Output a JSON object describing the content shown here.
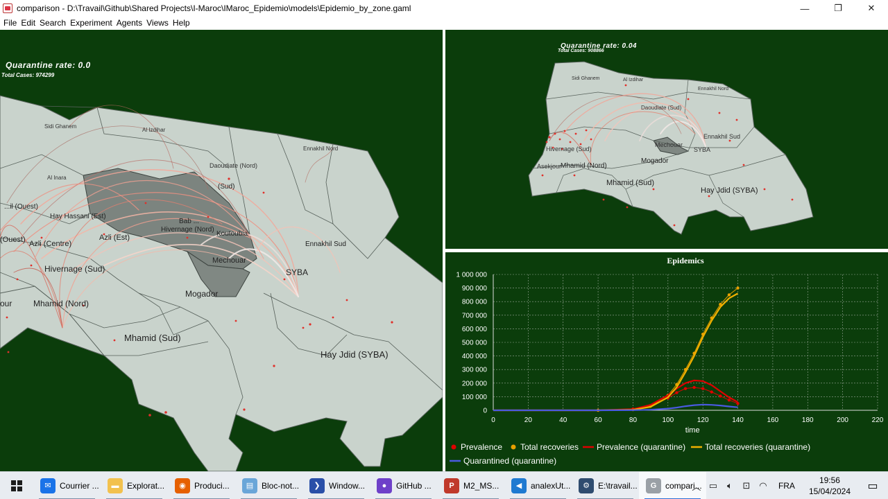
{
  "window": {
    "title": "comparison - D:\\Travail\\Github\\Shared Projects\\I-Maroc\\IMaroc_Epidemio\\models\\Epidemio_by_zone.gaml",
    "controls": {
      "minimize": "—",
      "restore": "❐",
      "close": "✕"
    }
  },
  "menu": [
    "File",
    "Edit",
    "Search",
    "Experiment",
    "Agents",
    "Views",
    "Help"
  ],
  "left_view": {
    "title": "Quarantine rate: 0.0",
    "subtitle": "Total Cases: 974299",
    "zones": {
      "sidi_ghanem": "Sidi Ghanem",
      "al_izdihar": "Al Izdihar",
      "ennakhil_nord": "Ennakhil Nord",
      "daoudiate": "Daoudiate (Nord)",
      "al_inara": "Al Inara",
      "ouest": "...il (Ouest)",
      "hay_hassani": "Hay Hassani (Est)",
      "sud": "(Sud)",
      "bab": "Bab ...",
      "hivernage_nord": "Hivernage (Nord)",
      "koutoubia": "Koutoubia",
      "ouest2": "(Ouest)",
      "azli_centre": "Azli (Centre)",
      "azli_est": "Azli (Est)",
      "ennakhil_sud": "Ennakhil Sud",
      "mechouar": "Mechouar",
      "hivernage_sud": "Hivernage (Sud)",
      "syba": "SYBA",
      "mhamid_nord": "Mhamid (Nord)",
      "mogador": "Mogador",
      "our": "our",
      "mhamid_sud": "Mhamid (Sud)",
      "hay_jdid": "Hay Jdid (SYBA)"
    }
  },
  "right_view": {
    "title": "Quarantine rate: 0.04",
    "subtitle": "Total Cases: 908866",
    "zones": {
      "ghanem": "Sidi Ghanem",
      "al_izdihar": "Al Izdihar",
      "ennakhil_nord": "Ennakhil Nord",
      "daoudiate": "Daoudiate (Sud)",
      "hivernage_sud": "Hivernage (Sud)",
      "mechouar": "Mechouar",
      "ennakhil_sud": "Ennakhil Sud",
      "syba": "SYBA",
      "asekjour": "Asekjour",
      "mhamid_nord": "Mhamid (Nord)",
      "mogador": "Mogador",
      "mhamid_sud": "Mhamid (Sud)",
      "hay_jdid": "Hay Jdid (SYBA)"
    }
  },
  "chart_data": {
    "type": "line",
    "title": "Epidemics",
    "xlabel": "time",
    "ylabel": "",
    "xlim": [
      0,
      220
    ],
    "ylim": [
      0,
      1000000
    ],
    "x_ticks": [
      0,
      20,
      40,
      60,
      80,
      100,
      120,
      140,
      160,
      180,
      200,
      220
    ],
    "y_ticks": [
      0,
      100000,
      200000,
      300000,
      400000,
      500000,
      600000,
      700000,
      800000,
      900000,
      1000000
    ],
    "y_tick_labels": [
      "0",
      "100 000",
      "200 000",
      "300 000",
      "400 000",
      "500 000",
      "600 000",
      "700 000",
      "800 000",
      "900 000",
      "1 000 000"
    ],
    "grid": true,
    "legend_position": "bottom",
    "series": [
      {
        "name": "Prevalence",
        "color": "#e00000",
        "style": "dots",
        "x": [
          0,
          60,
          80,
          90,
          100,
          105,
          110,
          115,
          120,
          125,
          130,
          135,
          140
        ],
        "values": [
          0,
          0,
          10000,
          35000,
          90000,
          130000,
          160000,
          168000,
          160000,
          135000,
          105000,
          75000,
          50000
        ]
      },
      {
        "name": "Total recoveries",
        "color": "#e8a000",
        "style": "dots",
        "x": [
          0,
          60,
          80,
          90,
          100,
          105,
          110,
          115,
          120,
          125,
          130,
          135,
          140
        ],
        "values": [
          0,
          0,
          5000,
          30000,
          110000,
          190000,
          300000,
          420000,
          560000,
          680000,
          780000,
          850000,
          900000
        ]
      },
      {
        "name": "Prevalence (quarantine)",
        "color": "#e00000",
        "style": "line",
        "x": [
          0,
          60,
          80,
          90,
          100,
          105,
          110,
          115,
          120,
          125,
          130,
          135,
          140
        ],
        "values": [
          0,
          0,
          8000,
          40000,
          110000,
          160000,
          200000,
          220000,
          215000,
          185000,
          140000,
          95000,
          60000
        ]
      },
      {
        "name": "Total recoveries (quarantine)",
        "color": "#f0b000",
        "style": "line",
        "x": [
          0,
          60,
          80,
          90,
          100,
          105,
          110,
          115,
          120,
          125,
          130,
          135,
          140
        ],
        "values": [
          0,
          0,
          4000,
          25000,
          95000,
          170000,
          280000,
          400000,
          540000,
          660000,
          760000,
          825000,
          860000
        ]
      },
      {
        "name": "Quarantined (quarantine)",
        "color": "#4a5ae0",
        "style": "line",
        "x": [
          0,
          60,
          80,
          90,
          100,
          105,
          110,
          115,
          120,
          125,
          130,
          135,
          140
        ],
        "values": [
          0,
          0,
          1000,
          4000,
          12000,
          20000,
          30000,
          38000,
          42000,
          40000,
          35000,
          28000,
          22000
        ]
      }
    ]
  },
  "taskbar": {
    "items": [
      {
        "label": "Courrier ...",
        "icon": "mail-icon",
        "color": "#1a73e8"
      },
      {
        "label": "Explorat...",
        "icon": "folder-icon",
        "color": "#f2c14e"
      },
      {
        "label": "Produci...",
        "icon": "firefox-icon",
        "color": "#e66000"
      },
      {
        "label": "Bloc-not...",
        "icon": "notepad-icon",
        "color": "#6aa6d8"
      },
      {
        "label": "Window...",
        "icon": "powershell-icon",
        "color": "#2a4fa8"
      },
      {
        "label": "GitHub ...",
        "icon": "github-icon",
        "color": "#6e40c9"
      },
      {
        "label": "M2_MS...",
        "icon": "pdf-icon",
        "color": "#c0392b"
      },
      {
        "label": "analexUt...",
        "icon": "vscode-icon",
        "color": "#1f7ad1"
      },
      {
        "label": "E:\\travail...",
        "icon": "gear-icon",
        "color": "#2f4c6f"
      },
      {
        "label": "compari...",
        "icon": "gama-icon",
        "color": "#9aa0a6"
      }
    ],
    "language": "FRA",
    "time": "19:56",
    "date": "15/04/2024"
  }
}
